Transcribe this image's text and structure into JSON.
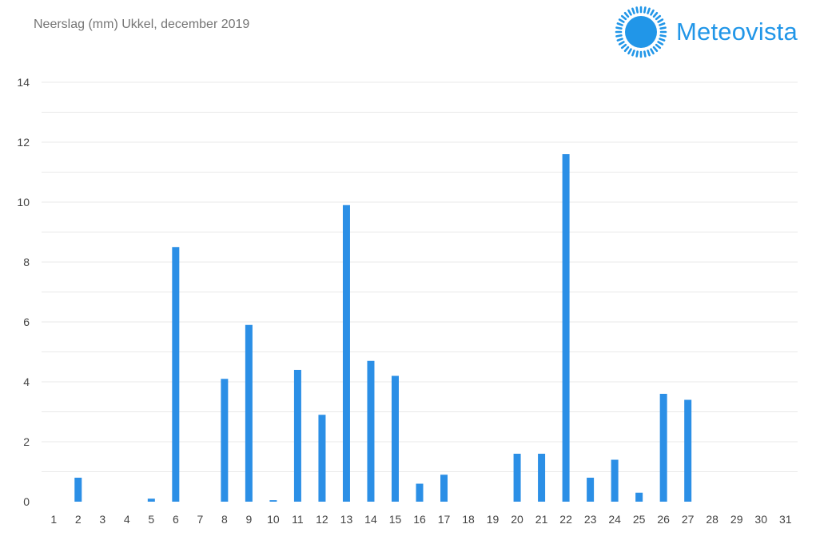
{
  "header": {
    "title": "Neerslag (mm) Ukkel, december 2019",
    "brand": "Meteovista",
    "logo_icon": "sun-icon"
  },
  "colors": {
    "bar": "#2b8fe6",
    "brand": "#2196e8",
    "grid": "#e9e9e9"
  },
  "chart_data": {
    "type": "bar",
    "title": "Neerslag (mm) Ukkel, december 2019",
    "xlabel": "",
    "ylabel": "",
    "categories": [
      "1",
      "2",
      "3",
      "4",
      "5",
      "6",
      "7",
      "8",
      "9",
      "10",
      "11",
      "12",
      "13",
      "14",
      "15",
      "16",
      "17",
      "18",
      "19",
      "20",
      "21",
      "22",
      "23",
      "24",
      "25",
      "26",
      "27",
      "28",
      "29",
      "30",
      "31"
    ],
    "values": [
      0,
      0.8,
      0,
      0,
      0.1,
      8.5,
      0,
      4.1,
      5.9,
      0.05,
      4.4,
      2.9,
      9.9,
      4.7,
      4.2,
      0.6,
      0.9,
      0,
      0,
      1.6,
      1.6,
      11.6,
      0.8,
      1.4,
      0.3,
      3.6,
      3.4,
      0,
      0,
      0,
      0
    ],
    "ylim": [
      0,
      14
    ],
    "yticks": [
      "0",
      "2",
      "4",
      "6",
      "8",
      "10",
      "12",
      "14"
    ],
    "grid": true,
    "legend": "none"
  }
}
